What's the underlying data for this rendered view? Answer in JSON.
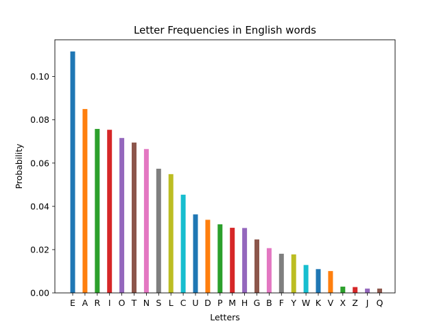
{
  "chart_data": {
    "type": "bar",
    "title": "Letter Frequencies in English words",
    "xlabel": "Letters",
    "ylabel": "Probability",
    "ylim": [
      0,
      0.117
    ],
    "yticks": [
      0.0,
      0.02,
      0.04,
      0.06,
      0.08,
      0.1
    ],
    "ytick_labels": [
      "0.00",
      "0.02",
      "0.04",
      "0.06",
      "0.08",
      "0.10"
    ],
    "grid": false,
    "categories": [
      "E",
      "A",
      "R",
      "I",
      "O",
      "T",
      "N",
      "S",
      "L",
      "C",
      "U",
      "D",
      "P",
      "M",
      "H",
      "G",
      "B",
      "F",
      "Y",
      "W",
      "K",
      "V",
      "X",
      "Z",
      "J",
      "Q"
    ],
    "values": [
      0.1116,
      0.085,
      0.0758,
      0.0754,
      0.0716,
      0.0695,
      0.0665,
      0.0574,
      0.0549,
      0.0454,
      0.0363,
      0.0338,
      0.0317,
      0.0301,
      0.03,
      0.0247,
      0.0207,
      0.0181,
      0.0178,
      0.0129,
      0.011,
      0.0101,
      0.0029,
      0.0027,
      0.002,
      0.002
    ],
    "colors": [
      "#1f77b4",
      "#ff7f0e",
      "#2ca02c",
      "#d62728",
      "#9467bd",
      "#8c564b",
      "#e377c2",
      "#7f7f7f",
      "#bcbd22",
      "#17becf"
    ]
  }
}
